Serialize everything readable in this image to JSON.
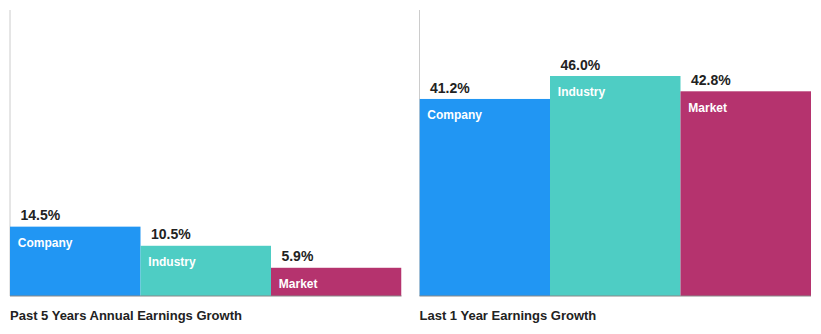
{
  "chart_data": [
    {
      "type": "bar",
      "title": "Past 5 Years Annual Earnings Growth",
      "categories": [
        "Company",
        "Industry",
        "Market"
      ],
      "values": [
        14.5,
        10.5,
        5.9
      ],
      "value_labels": [
        "14.5%",
        "10.5%",
        "5.9%"
      ],
      "colors": [
        "#2196f3",
        "#4ecdc4",
        "#b5336e"
      ],
      "ylim": [
        0,
        59.8
      ],
      "grid": false,
      "tick_labels": false,
      "data_labels": true
    },
    {
      "type": "bar",
      "title": "Last 1 Year Earnings Growth",
      "categories": [
        "Company",
        "Industry",
        "Market"
      ],
      "values": [
        41.2,
        46.0,
        42.8
      ],
      "value_labels": [
        "41.2%",
        "46.0%",
        "42.8%"
      ],
      "colors": [
        "#2196f3",
        "#4ecdc4",
        "#b5336e"
      ],
      "ylim": [
        0,
        59.8
      ],
      "grid": false,
      "tick_labels": false,
      "data_labels": true
    }
  ]
}
